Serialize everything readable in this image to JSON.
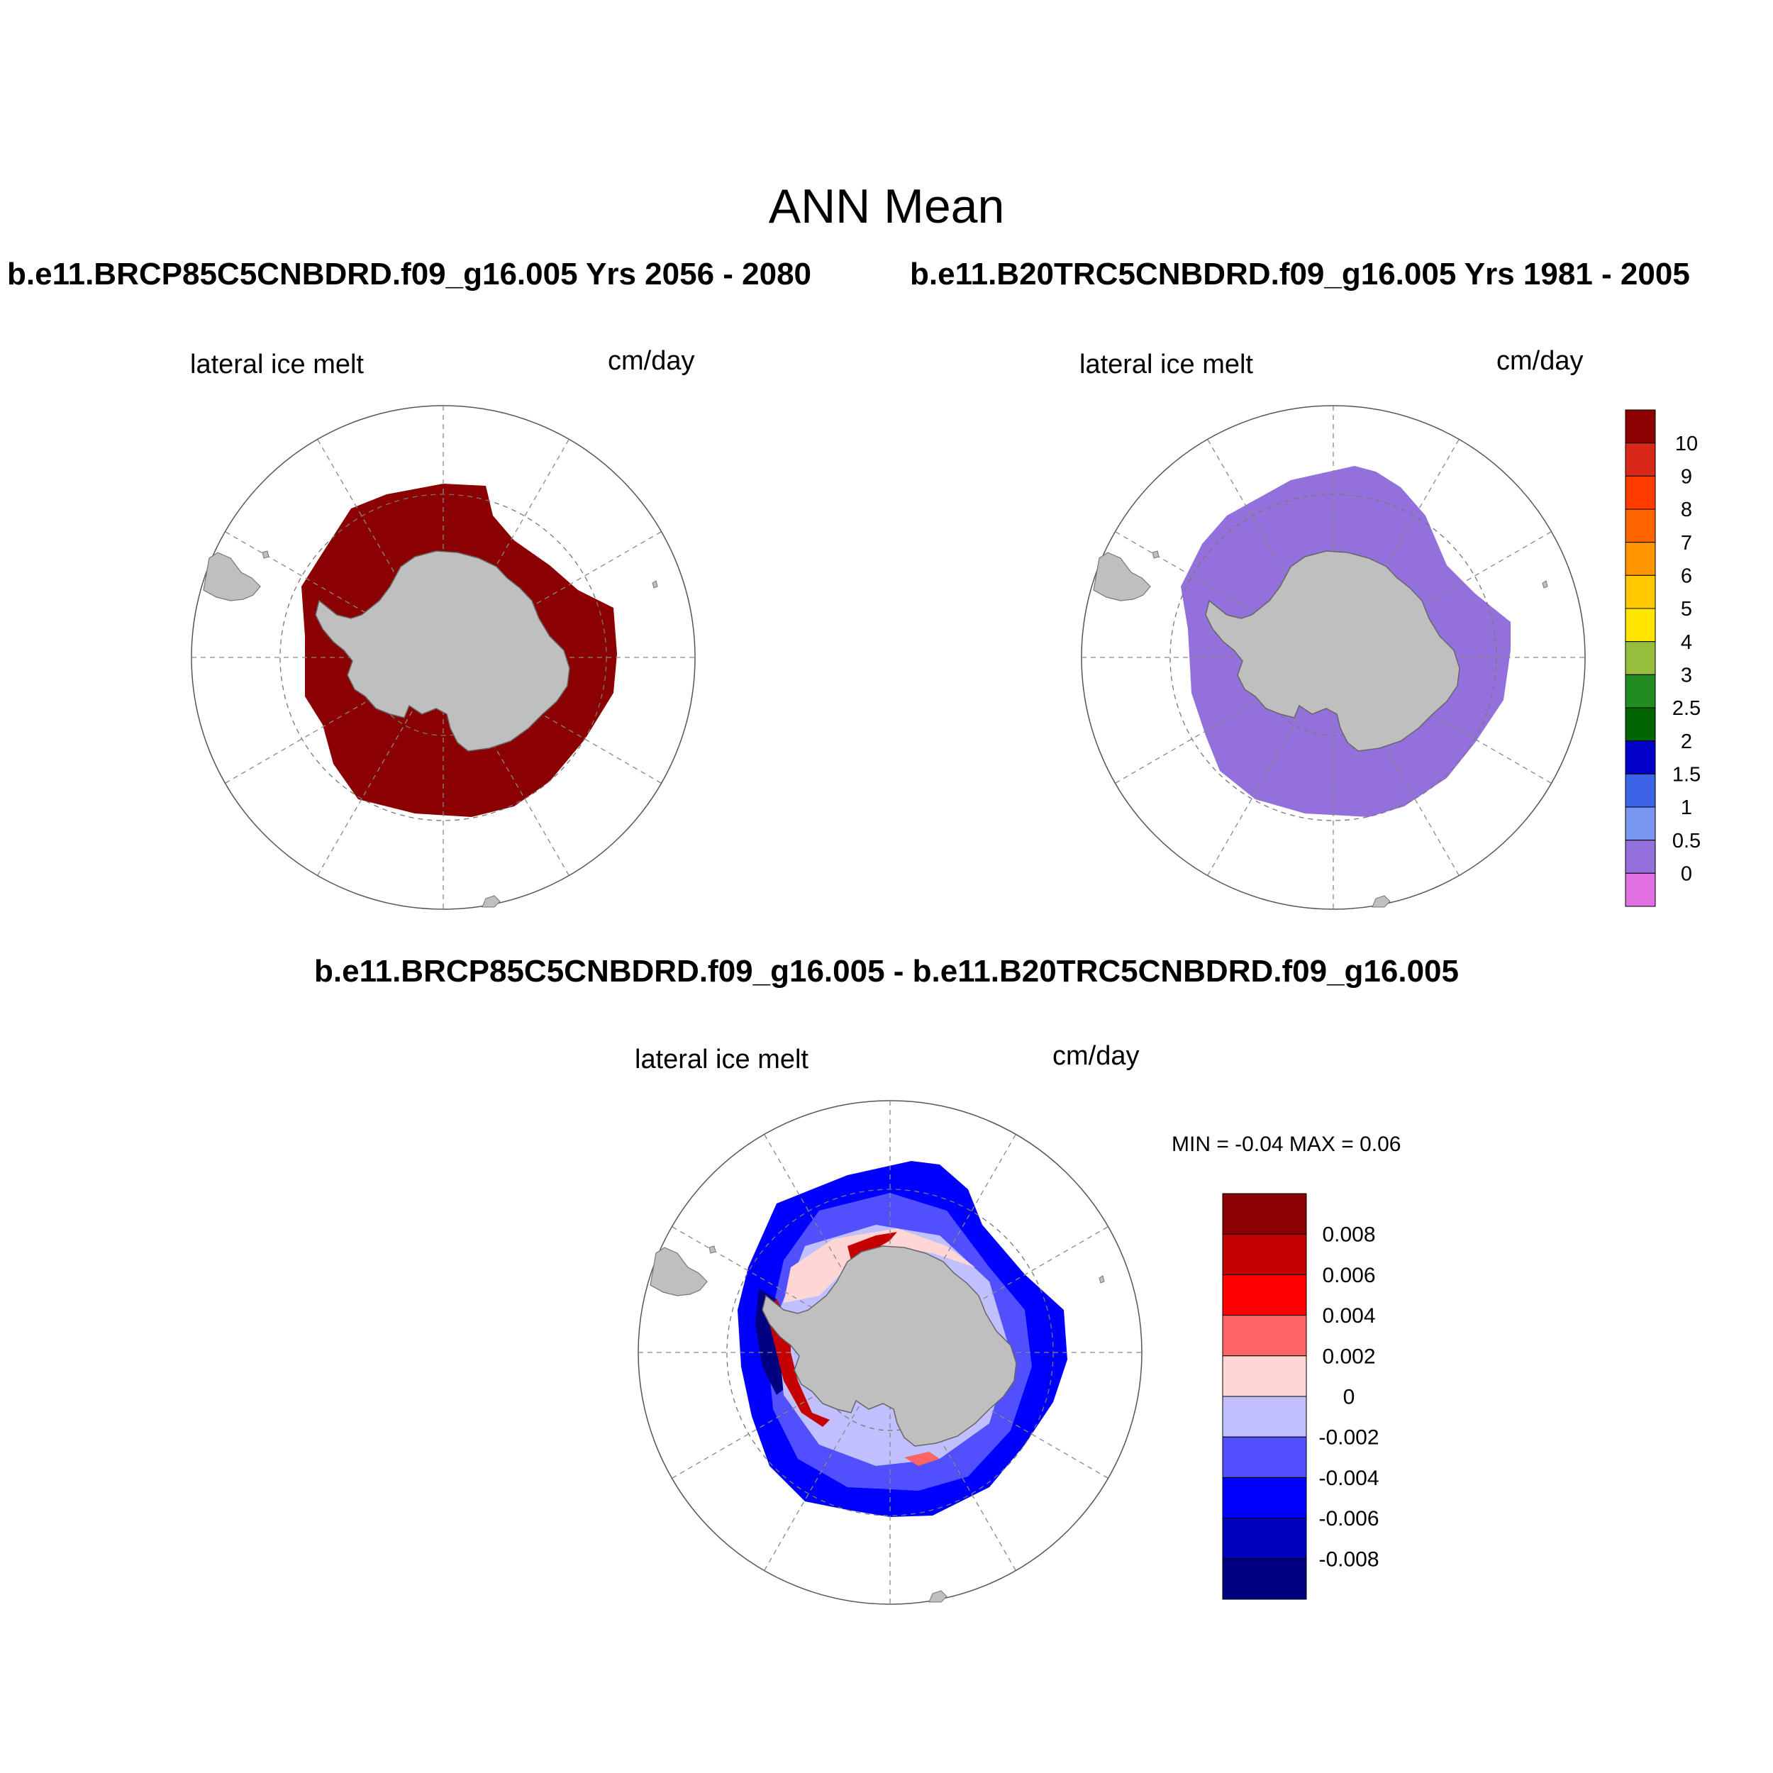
{
  "main_title": "ANN Mean",
  "case1_title": "b.e11.BRCP85C5CNBDRD.f09_g16.005  Yrs 2056 - 2080",
  "case2_title": "b.e11.B20TRC5CNBDRD.f09_g16.005  Yrs 1981 - 2005",
  "diff_title": "b.e11.BRCP85C5CNBDRD.f09_g16.005 - b.e11.B20TRC5CNBDRD.f09_g16.005",
  "panel1": {
    "variable": "lateral ice melt",
    "units": "cm/day"
  },
  "panel2": {
    "variable": "lateral ice melt",
    "units": "cm/day"
  },
  "panel3": {
    "variable": "lateral ice melt",
    "units": "cm/day",
    "min_max": "MIN =  -0.04 MAX =   0.06"
  },
  "colorbar_top": {
    "labels": [
      "10",
      "9",
      "8",
      "7",
      "6",
      "5",
      "4",
      "3",
      "2.5",
      "2",
      "1.5",
      "1",
      "0.5",
      "0"
    ],
    "colors": [
      "#8b0000",
      "#d9281a",
      "#ff3c00",
      "#ff6600",
      "#ff9600",
      "#ffc800",
      "#ffe600",
      "#96be3c",
      "#228b22",
      "#006400",
      "#0000c8",
      "#3c64e6",
      "#7896f0",
      "#9370db",
      "#e070e0"
    ]
  },
  "colorbar_diff": {
    "labels": [
      "0.008",
      "0.006",
      "0.004",
      "0.002",
      "0",
      "-0.002",
      "-0.004",
      "-0.006",
      "-0.008"
    ],
    "colors": [
      "#8b0000",
      "#c40000",
      "#ff0000",
      "#ff6464",
      "#ffd6d6",
      "#c0c0ff",
      "#5050ff",
      "#0000ff",
      "#0000c0",
      "#000080"
    ]
  },
  "map_colors": {
    "land": "#bfbfbf",
    "panel1_field": "#8b0000",
    "panel2_field": "#9370db"
  }
}
